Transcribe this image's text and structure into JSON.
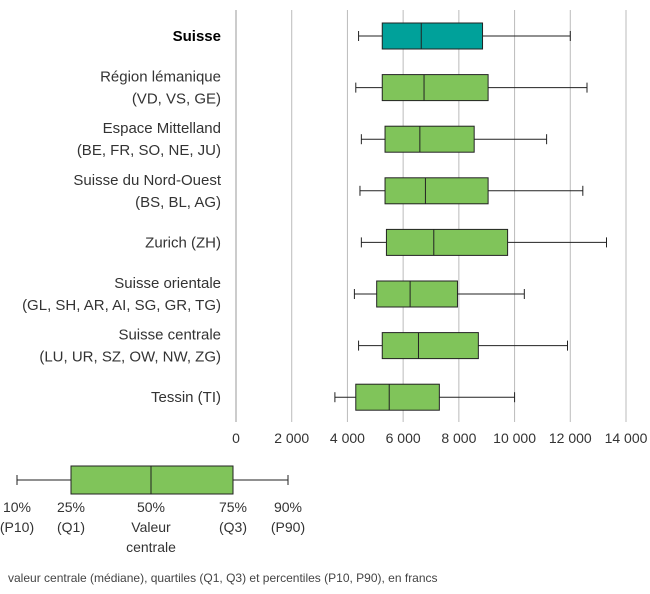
{
  "chart_data": {
    "type": "boxplot",
    "orientation": "horizontal",
    "categories": [
      {
        "label": [
          "Suisse"
        ],
        "bold": true,
        "p10": 4400,
        "q1": 5250,
        "median": 6650,
        "q3": 8850,
        "p90": 12000
      },
      {
        "label": [
          "Région lémanique",
          "(VD, VS, GE)"
        ],
        "bold": false,
        "p10": 4300,
        "q1": 5250,
        "median": 6750,
        "q3": 9050,
        "p90": 12600
      },
      {
        "label": [
          "Espace Mittelland",
          "(BE, FR, SO, NE, JU)"
        ],
        "bold": false,
        "p10": 4500,
        "q1": 5350,
        "median": 6600,
        "q3": 8550,
        "p90": 11150
      },
      {
        "label": [
          "Suisse du Nord-Ouest",
          "(BS, BL, AG)"
        ],
        "bold": false,
        "p10": 4450,
        "q1": 5350,
        "median": 6800,
        "q3": 9050,
        "p90": 12450
      },
      {
        "label": [
          "Zurich (ZH)"
        ],
        "bold": false,
        "p10": 4500,
        "q1": 5400,
        "median": 7100,
        "q3": 9750,
        "p90": 13300
      },
      {
        "label": [
          "Suisse orientale",
          "(GL, SH, AR, AI, SG, GR, TG)"
        ],
        "bold": false,
        "p10": 4250,
        "q1": 5050,
        "median": 6250,
        "q3": 7950,
        "p90": 10350
      },
      {
        "label": [
          "Suisse centrale",
          "(LU, UR, SZ, OW, NW, ZG)"
        ],
        "bold": false,
        "p10": 4400,
        "q1": 5250,
        "median": 6550,
        "q3": 8700,
        "p90": 11900
      },
      {
        "label": [
          "Tessin (TI)"
        ],
        "bold": false,
        "p10": 3550,
        "q1": 4300,
        "median": 5500,
        "q3": 7300,
        "p90": 10000
      }
    ],
    "xlim": [
      0,
      14000
    ],
    "xticks": [
      0,
      2000,
      4000,
      6000,
      8000,
      10000,
      12000,
      14000
    ],
    "xtick_labels": [
      "0",
      "2 000",
      "4 000",
      "6 000",
      "8 000",
      "10 000",
      "12 000",
      "14 000"
    ],
    "grid": true,
    "colors": {
      "highlight": "#00a19a",
      "box": "#80c45a",
      "gridline": "#bbbbbb",
      "axis": "#999999",
      "stroke": "#222222"
    }
  },
  "legend": {
    "items": [
      {
        "lines": [
          "10%",
          "(P10)"
        ]
      },
      {
        "lines": [
          "25%",
          "(Q1)"
        ]
      },
      {
        "lines": [
          "50%",
          "Valeur",
          "centrale"
        ]
      },
      {
        "lines": [
          "75%",
          "(Q3)"
        ]
      },
      {
        "lines": [
          "90%",
          "(P90)"
        ]
      }
    ]
  },
  "footnote": "valeur centrale (médiane), quartiles (Q1, Q3) et percentiles (P10, P90), en francs"
}
